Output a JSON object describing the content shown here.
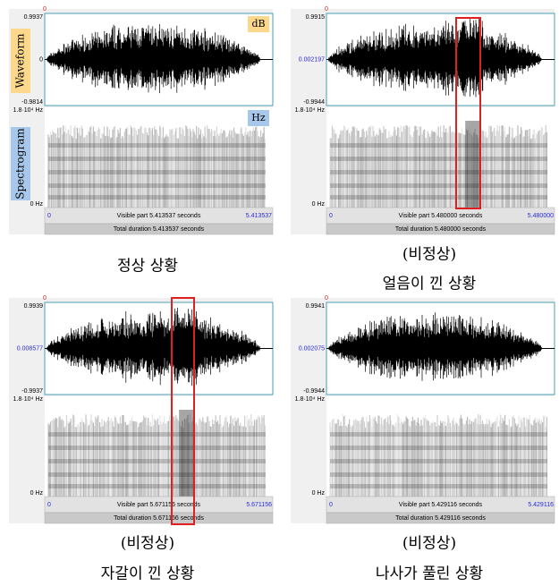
{
  "panels": [
    {
      "cursor": "0",
      "y_top": "0.9937",
      "y_mid": "0",
      "y_bottom": "-0.9814",
      "freq_top": "1.8·10⁴ Hz",
      "freq_bottom": "0 Hz",
      "x_start": "0",
      "visible": "Visible part 5.413537 seconds",
      "x_end": "5.413537",
      "total": "Total duration 5.413537 seconds",
      "caption": [
        "정상 상황"
      ],
      "waveform_label": "Waveform",
      "spectrogram_label": "Spectrogram",
      "waveform_unit": "dB",
      "spectrogram_unit": "Hz"
    },
    {
      "cursor": "0",
      "y_top": "0.9915",
      "y_mid": "0.002197",
      "y_bottom": "-0.9944",
      "freq_top": "1.8·10⁴ Hz",
      "freq_bottom": "0 Hz",
      "x_start": "0",
      "visible": "Visible part 5.480000 seconds",
      "x_end": "5.480000",
      "total": "Total duration 5.480000 seconds",
      "caption": [
        "(비정상)",
        "얼음이 낀 상황"
      ]
    },
    {
      "cursor": "0",
      "y_top": "0.9939",
      "y_mid": "0.008577",
      "y_bottom": "-0.9937",
      "freq_top": "1.8·10⁴ Hz",
      "freq_bottom": "0 Hz",
      "x_start": "0",
      "visible": "Visible part 5.671156 seconds",
      "x_end": "5.671156",
      "total": "Total duration 5.671156 seconds",
      "caption": [
        "(비정상)",
        "자갈이 낀 상황"
      ]
    },
    {
      "cursor": "0",
      "y_top": "0.9941",
      "y_mid": "0.002075",
      "y_bottom": "-0.9944",
      "freq_top": "1.8·10⁴ Hz",
      "freq_bottom": "0 Hz",
      "x_start": "0",
      "visible": "Visible part 5.429116 seconds",
      "x_end": "5.429116",
      "total": "Total duration 5.429116 seconds",
      "caption": [
        "(비정상)",
        "나사가 풀린 상황"
      ]
    }
  ]
}
